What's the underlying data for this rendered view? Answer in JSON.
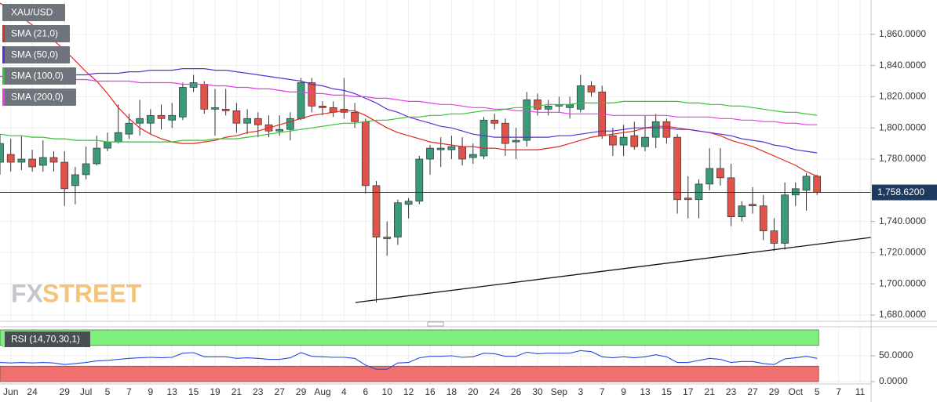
{
  "chart_data": [
    {
      "type": "candlestick",
      "categories": [
        null,
        "Jun",
        null,
        "24",
        null,
        null,
        "29",
        null,
        "Jul",
        null,
        "5",
        null,
        "7",
        null,
        "9",
        null,
        "13",
        null,
        "15",
        null,
        "19",
        null,
        "21",
        null,
        "23",
        null,
        "27",
        null,
        "29",
        null,
        "Aug",
        null,
        "4",
        null,
        "6",
        null,
        "10",
        null,
        "12",
        null,
        "16",
        null,
        "18",
        null,
        "20",
        null,
        "24",
        null,
        "26",
        null,
        "30",
        null,
        "Sep",
        null,
        "3",
        null,
        "7",
        null,
        "9",
        null,
        "13",
        null,
        "15",
        null,
        "17",
        null,
        "21",
        null,
        "23",
        null,
        "27",
        null,
        "29",
        null,
        "Oct",
        null,
        "5",
        null,
        "7",
        null,
        "11"
      ],
      "series": [
        {
          "name": "XAU/USD",
          "up_color": "#3a9a7a",
          "down_color": "#e0534a",
          "open": [
            1778,
            1783,
            1778,
            1780,
            1776,
            1781,
            1778,
            1763,
            1770,
            1777,
            1787,
            1791,
            1796,
            1803,
            1803,
            1808,
            1805,
            1807,
            1826,
            1828,
            1812,
            1812,
            1811,
            1803,
            1806,
            1802,
            1798,
            1799,
            1806,
            1829,
            1814,
            1813,
            1812,
            1810,
            1804,
            1763,
            1730,
            1730,
            1751,
            1753,
            1780,
            1786,
            1786,
            1788,
            1781,
            1782,
            1805,
            1803,
            1791,
            1792,
            1818,
            1812,
            1814,
            1813,
            1812,
            1827,
            1823,
            1795,
            1789,
            1795,
            1788,
            1794,
            1804,
            1794,
            1755,
            1754,
            1764,
            1774,
            1768,
            1743,
            1751,
            1750,
            1734,
            1726,
            1757,
            1760,
            1769,
            null,
            null,
            null,
            null
          ],
          "high": [
            1796,
            1793,
            1795,
            1786,
            1792,
            1785,
            1785,
            1775,
            1788,
            1795,
            1797,
            1815,
            1809,
            1818,
            1812,
            1815,
            1816,
            1829,
            1834,
            1830,
            1825,
            1825,
            1816,
            1812,
            1810,
            1808,
            1808,
            1810,
            1832,
            1832,
            1817,
            1817,
            1832,
            1816,
            1806,
            1766,
            1740,
            1754,
            1755,
            1782,
            1789,
            1794,
            1795,
            1794,
            1790,
            1807,
            1809,
            1806,
            1800,
            1823,
            1822,
            1818,
            1820,
            1820,
            1834,
            1830,
            1827,
            1800,
            1802,
            1804,
            1808,
            1809,
            1806,
            1796,
            1769,
            1767,
            1787,
            1787,
            1777,
            1753,
            1762,
            1757,
            1742,
            1765,
            1765,
            1771,
            1770,
            null,
            null,
            null,
            null
          ],
          "low": [
            1770,
            1772,
            1773,
            1772,
            1772,
            1772,
            1750,
            1751,
            1767,
            1776,
            1785,
            1790,
            1793,
            1795,
            1796,
            1799,
            1800,
            1805,
            1823,
            1809,
            1795,
            1808,
            1797,
            1796,
            1794,
            1794,
            1795,
            1792,
            1805,
            1810,
            1808,
            1807,
            1806,
            1800,
            1758,
            1688,
            1718,
            1725,
            1742,
            1751,
            1770,
            1775,
            1780,
            1776,
            1777,
            1780,
            1799,
            1782,
            1780,
            1788,
            1808,
            1808,
            1810,
            1806,
            1810,
            1820,
            1793,
            1782,
            1782,
            1786,
            1785,
            1787,
            1790,
            1745,
            1742,
            1742,
            1760,
            1763,
            1737,
            1740,
            1745,
            1728,
            1721,
            1722,
            1750,
            1747,
            1757,
            null,
            null,
            null,
            null
          ],
          "close": [
            1790,
            1778,
            1780,
            1775,
            1781,
            1778,
            1761,
            1770,
            1777,
            1787,
            1791,
            1797,
            1803,
            1806,
            1808,
            1806,
            1808,
            1826,
            1829,
            1812,
            1813,
            1811,
            1803,
            1806,
            1802,
            1798,
            1799,
            1806,
            1829,
            1814,
            1813,
            1810,
            1810,
            1804,
            1763,
            1730,
            1729,
            1752,
            1753,
            1780,
            1787,
            1787,
            1788,
            1780,
            1783,
            1805,
            1803,
            1790,
            1792,
            1818,
            1812,
            1814,
            1815,
            1815,
            1827,
            1823,
            1795,
            1789,
            1794,
            1788,
            1794,
            1804,
            1794,
            1754,
            1754,
            1764,
            1774,
            1768,
            1743,
            1750,
            1750,
            1734,
            1726,
            1757,
            1761,
            1769,
            1758.62,
            null,
            null,
            null,
            null
          ]
        },
        {
          "name": "SMA (21,0)",
          "color": "#e0291f",
          "values": [
            1880,
            1876,
            1871,
            1866,
            1861,
            1856,
            1850,
            1843,
            1836,
            1830,
            1822,
            1813,
            1806,
            1800,
            1796,
            1793,
            1791,
            1790,
            1790,
            1791,
            1792,
            1794,
            1795,
            1797,
            1798,
            1800,
            1802,
            1804,
            1806,
            1808,
            1809,
            1810,
            1811,
            1811,
            1808,
            1804,
            1800,
            1797,
            1795,
            1793,
            1791,
            1790,
            1789,
            1788,
            1788,
            1787,
            1787,
            1786,
            1786,
            1786,
            1786,
            1787,
            1788,
            1790,
            1792,
            1794,
            1795,
            1796,
            1797,
            1798,
            1800,
            1801,
            1801,
            1800,
            1799,
            1798,
            1797,
            1795,
            1792,
            1790,
            1788,
            1785,
            1782,
            1779,
            1776,
            1772,
            1769,
            null,
            null,
            null,
            null
          ]
        },
        {
          "name": "SMA (50,0)",
          "color": "#5a2fd6",
          "values": [
            1833,
            1833,
            1833,
            1833,
            1834,
            1834,
            1834,
            1834,
            1834,
            1835,
            1835,
            1835,
            1836,
            1836,
            1837,
            1837,
            1837,
            1838,
            1838,
            1838,
            1837,
            1837,
            1836,
            1835,
            1834,
            1833,
            1832,
            1831,
            1830,
            1828,
            1827,
            1825,
            1824,
            1822,
            1819,
            1816,
            1812,
            1810,
            1807,
            1805,
            1803,
            1801,
            1800,
            1798,
            1796,
            1795,
            1794,
            1794,
            1794,
            1794,
            1794,
            1794,
            1795,
            1795,
            1796,
            1797,
            1798,
            1798,
            1799,
            1800,
            1800,
            1800,
            1800,
            1799,
            1799,
            1798,
            1797,
            1796,
            1795,
            1793,
            1792,
            1791,
            1789,
            1788,
            1786,
            1785,
            1784,
            null,
            null,
            null,
            null
          ]
        },
        {
          "name": "SMA (100,0)",
          "color": "#33c433",
          "values": [
            1796,
            1795,
            1795,
            1794,
            1794,
            1793,
            1793,
            1792,
            1792,
            1792,
            1791,
            1791,
            1791,
            1791,
            1791,
            1791,
            1791,
            1792,
            1792,
            1792,
            1793,
            1793,
            1793,
            1794,
            1795,
            1796,
            1797,
            1798,
            1799,
            1800,
            1801,
            1802,
            1803,
            1803,
            1804,
            1805,
            1805,
            1806,
            1807,
            1807,
            1808,
            1808,
            1809,
            1809,
            1810,
            1811,
            1811,
            1812,
            1813,
            1813,
            1814,
            1815,
            1815,
            1815,
            1816,
            1816,
            1816,
            1816,
            1817,
            1817,
            1817,
            1817,
            1817,
            1817,
            1816,
            1816,
            1815,
            1815,
            1814,
            1814,
            1813,
            1812,
            1811,
            1810,
            1810,
            1809,
            1808,
            null,
            null,
            null,
            null
          ]
        },
        {
          "name": "SMA (200,0)",
          "color": "#e83ae8",
          "values": [
            1833,
            1833,
            1832,
            1832,
            1832,
            1831,
            1831,
            1831,
            1831,
            1830,
            1830,
            1830,
            1830,
            1829,
            1829,
            1829,
            1829,
            1828,
            1828,
            1828,
            1827,
            1827,
            1826,
            1826,
            1825,
            1825,
            1824,
            1823,
            1823,
            1822,
            1822,
            1821,
            1821,
            1820,
            1820,
            1819,
            1819,
            1818,
            1817,
            1817,
            1816,
            1815,
            1815,
            1814,
            1813,
            1813,
            1812,
            1812,
            1811,
            1811,
            1810,
            1810,
            1810,
            1809,
            1809,
            1809,
            1809,
            1808,
            1808,
            1808,
            1808,
            1808,
            1808,
            1807,
            1807,
            1807,
            1807,
            1806,
            1806,
            1805,
            1805,
            1804,
            1804,
            1803,
            1803,
            1802,
            1802,
            null,
            null,
            null,
            null
          ]
        }
      ],
      "ylim": [
        1676,
        1882
      ],
      "yticks": [
        {
          "value": 1680,
          "label": "1,680.0000"
        },
        {
          "value": 1700,
          "label": "1,700.0000"
        },
        {
          "value": 1720,
          "label": "1,720.0000"
        },
        {
          "value": 1740,
          "label": "1,740.0000"
        },
        {
          "value": 1760,
          "label": "1,760.0000"
        },
        {
          "value": 1780,
          "label": "1,780.0000"
        },
        {
          "value": 1800,
          "label": "1,800.0000"
        },
        {
          "value": 1820,
          "label": "1,820.0000"
        },
        {
          "value": 1840,
          "label": "1,840.0000"
        },
        {
          "value": 1860,
          "label": "1,860.0000"
        }
      ],
      "price_line": {
        "value": 1758.62,
        "label": "1,758.6200",
        "color": "#1f3a5f"
      },
      "grid": true,
      "watermark": [
        "FX",
        "STREET"
      ]
    },
    {
      "type": "line",
      "name": "RSI (14,70,30,1)",
      "color": "#2c4be0",
      "values": [
        37,
        36,
        37,
        36,
        37,
        36,
        33,
        35,
        37,
        40,
        41,
        43,
        45,
        46,
        47,
        46,
        47,
        55,
        56,
        48,
        48,
        48,
        45,
        46,
        45,
        43,
        43,
        46,
        56,
        49,
        48,
        47,
        47,
        45,
        32,
        24,
        24,
        36,
        37,
        46,
        49,
        49,
        50,
        47,
        48,
        55,
        54,
        49,
        49,
        57,
        54,
        55,
        55,
        55,
        60,
        58,
        48,
        46,
        48,
        46,
        48,
        52,
        48,
        37,
        37,
        41,
        45,
        43,
        37,
        39,
        39,
        35,
        33,
        44,
        46,
        49,
        45,
        null,
        null,
        null,
        null
      ],
      "ylim": [
        -4.5,
        104.5
      ],
      "yticks": [
        {
          "value": 0,
          "label": "0.0000"
        },
        {
          "value": 50,
          "label": "50.0000"
        }
      ],
      "bands": [
        {
          "from": 70,
          "to": 100,
          "color": "#7ef07e"
        },
        {
          "from": 0,
          "to": 30,
          "color": "#f07070"
        }
      ],
      "grid": true
    }
  ]
}
